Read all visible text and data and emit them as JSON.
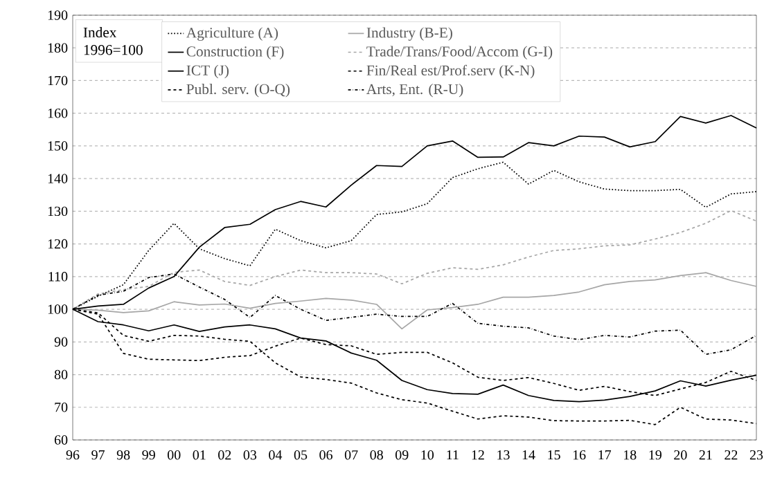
{
  "chart_data": {
    "type": "line",
    "categories": [
      "96",
      "97",
      "98",
      "99",
      "00",
      "01",
      "02",
      "03",
      "04",
      "05",
      "06",
      "07",
      "08",
      "09",
      "10",
      "11",
      "12",
      "13",
      "14",
      "15",
      "16",
      "17",
      "18",
      "19",
      "20",
      "21",
      "22",
      "23"
    ],
    "series": [
      {
        "name": "Agriculture (A)",
        "color": "#000000",
        "line_style": "dotted",
        "values": [
          100,
          104,
          107.5,
          118,
          126.3,
          118.5,
          115.5,
          113.3,
          124.5,
          121,
          118.8,
          121,
          129,
          129.8,
          132.3,
          140.3,
          143,
          145,
          138.3,
          142.5,
          139,
          136.8,
          136.3,
          136.3,
          136.7,
          131.2,
          135.3,
          136
        ]
      },
      {
        "name": "Industry (B-E)",
        "color": "#a6a6a6",
        "line_style": "solid",
        "values": [
          100,
          99.7,
          99,
          99.5,
          102.3,
          101.3,
          101.6,
          100.3,
          101.8,
          102.5,
          103.3,
          102.8,
          101.5,
          94,
          99.8,
          100.5,
          101.5,
          103.7,
          103.7,
          104.2,
          105.3,
          107.5,
          108.5,
          109,
          110.3,
          111.2,
          108.8,
          107
        ]
      },
      {
        "name": "Construction (F)",
        "color": "#000000",
        "line_style": "solid",
        "values": [
          100,
          96.2,
          95.2,
          93.4,
          95.2,
          93.2,
          94.6,
          95.2,
          94,
          91.2,
          90.3,
          86.6,
          84.4,
          78.2,
          75.4,
          74.2,
          74,
          76.8,
          73.6,
          72.1,
          71.7,
          72.2,
          73.3,
          75,
          78.1,
          76.5,
          78.3,
          79.8
        ]
      },
      {
        "name": "Trade/Trans/Food/Accom (G-I)",
        "color": "#a6a6a6",
        "line_style": "dashed",
        "values": [
          100,
          104.7,
          106,
          107,
          111.3,
          112,
          108.5,
          107.3,
          110,
          112,
          111.2,
          111.2,
          110.8,
          107.8,
          111,
          112.7,
          112.2,
          113.6,
          116,
          118,
          118.5,
          119.4,
          119.7,
          121.5,
          123.5,
          126.3,
          130.2,
          127
        ]
      },
      {
        "name": "ICT (J)",
        "color": "#000000",
        "line_style": "solid",
        "values": [
          100,
          101,
          101.5,
          106.5,
          110,
          119,
          125,
          126,
          130.5,
          133,
          131.3,
          138,
          144,
          143.7,
          150,
          151.5,
          146.5,
          146.6,
          151,
          150,
          153,
          152.7,
          149.7,
          151.3,
          159,
          157,
          159.3,
          155.5
        ]
      },
      {
        "name": "Fin/Real est/Prof.serv (K-N)",
        "color": "#000000",
        "line_style": "dashed",
        "values": [
          100,
          98.9,
          92,
          90.2,
          92,
          91.8,
          90.8,
          90.2,
          83.6,
          79.3,
          78.5,
          77.4,
          74.4,
          72.3,
          71.3,
          68.8,
          66.4,
          67.4,
          67,
          65.9,
          65.8,
          65.8,
          66,
          64.7,
          70,
          66.4,
          66.1,
          65
        ]
      },
      {
        "name": "Publ. serv. (O-Q)",
        "color": "#000000",
        "line_style": "dashed",
        "values": [
          100,
          98.5,
          86.5,
          84.7,
          84.5,
          84.3,
          85.3,
          85.8,
          88.7,
          91.2,
          89.2,
          88.8,
          86.2,
          86.8,
          86.8,
          83.6,
          79.2,
          78.2,
          79.1,
          77.3,
          75.2,
          76.4,
          74.8,
          73.6,
          75.6,
          77.6,
          81,
          78.2
        ]
      },
      {
        "name": "Arts, Ent. (R-U)",
        "color": "#000000",
        "line_style": "dashdot",
        "values": [
          100,
          104.3,
          105.5,
          109.7,
          110.8,
          106.8,
          103,
          97.5,
          104.2,
          100,
          96.6,
          97.5,
          98.5,
          97.8,
          97.8,
          101.8,
          95.7,
          94.8,
          94.3,
          91.8,
          90.7,
          92,
          91.5,
          93.3,
          93.6,
          86.2,
          87.6,
          92
        ]
      }
    ],
    "ylim": [
      60,
      190
    ],
    "yticks": [
      60,
      70,
      80,
      90,
      100,
      110,
      120,
      130,
      140,
      150,
      160,
      170,
      180,
      190
    ],
    "grid": "y",
    "legend": "top",
    "annotations": [
      "Index 1996=100"
    ]
  }
}
